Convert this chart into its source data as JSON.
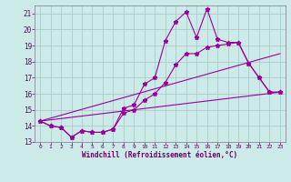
{
  "title": "",
  "xlabel": "Windchill (Refroidissement éolien,°C)",
  "ylabel": "",
  "background_color": "#cceae8",
  "line_color": "#990099",
  "grid_color": "#aacccc",
  "x_min": 0,
  "x_max": 23,
  "y_min": 13,
  "y_max": 21.5,
  "x_ticks": [
    0,
    1,
    2,
    3,
    4,
    5,
    6,
    7,
    8,
    9,
    10,
    11,
    12,
    13,
    14,
    15,
    16,
    17,
    18,
    19,
    20,
    21,
    22,
    23
  ],
  "y_ticks": [
    13,
    14,
    15,
    16,
    17,
    18,
    19,
    20,
    21
  ],
  "series": [
    {
      "x": [
        0,
        1,
        2,
        3,
        4,
        5,
        6,
        7,
        8,
        9,
        10,
        11,
        12,
        13,
        14,
        15,
        16,
        17,
        18,
        19,
        20,
        21,
        22,
        23
      ],
      "y": [
        14.3,
        14.0,
        13.9,
        13.3,
        13.7,
        13.6,
        13.6,
        13.8,
        15.1,
        15.3,
        16.6,
        17.0,
        19.3,
        20.5,
        21.1,
        19.5,
        21.3,
        19.4,
        19.2,
        19.2,
        17.9,
        17.0,
        16.1,
        16.1
      ],
      "marker": true
    },
    {
      "x": [
        0,
        1,
        2,
        3,
        4,
        5,
        6,
        7,
        8,
        9,
        10,
        11,
        12,
        13,
        14,
        15,
        16,
        17,
        18,
        19,
        20,
        21,
        22,
        23
      ],
      "y": [
        14.3,
        14.0,
        13.9,
        13.3,
        13.7,
        13.6,
        13.6,
        13.8,
        14.8,
        15.0,
        15.6,
        16.0,
        16.7,
        17.8,
        18.5,
        18.5,
        18.9,
        19.0,
        19.1,
        19.2,
        17.9,
        17.0,
        16.1,
        16.1
      ],
      "marker": true
    },
    {
      "x": [
        0,
        23
      ],
      "y": [
        14.3,
        18.5
      ],
      "marker": false
    },
    {
      "x": [
        0,
        23
      ],
      "y": [
        14.3,
        16.1
      ],
      "marker": false
    }
  ]
}
